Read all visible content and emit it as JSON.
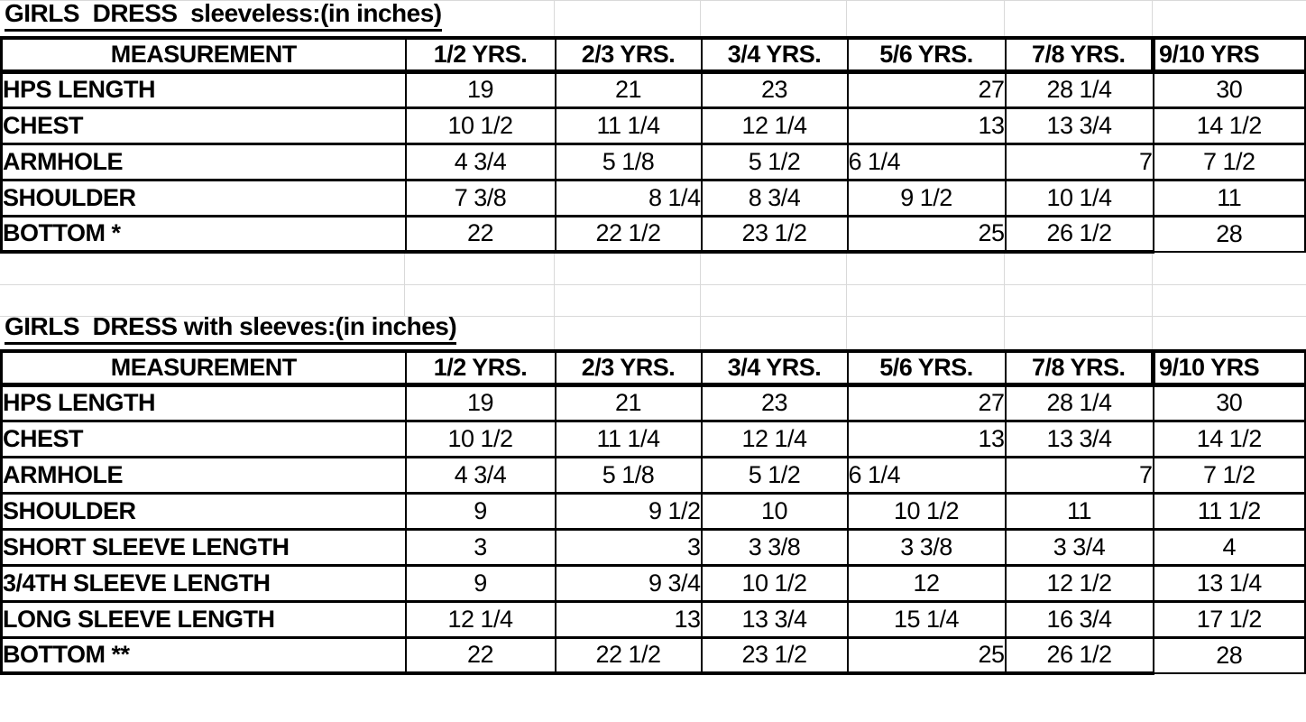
{
  "sheet": {
    "background": "#ffffff",
    "gridline_color": "#d9d9d9",
    "border_color": "#000000",
    "text_color": "#000000"
  },
  "tables": [
    {
      "title": "GIRLS  DRESS  sleeveless:(in inches)",
      "columns": [
        "MEASUREMENT",
        "1/2 YRS.",
        "2/3 YRS.",
        "3/4 YRS.",
        "5/6 YRS.",
        "7/8 YRS.",
        "9/10 YRS"
      ],
      "rows": [
        {
          "label": "HPS LENGTH",
          "values": [
            "19",
            "21",
            "23",
            "27",
            "28 1/4",
            "30"
          ],
          "align": [
            "c",
            "c",
            "c",
            "r",
            "c",
            "c"
          ]
        },
        {
          "label": "CHEST",
          "values": [
            "10 1/2",
            "11 1/4",
            "12 1/4",
            "13",
            "13 3/4",
            "14 1/2"
          ],
          "align": [
            "c",
            "c",
            "c",
            "r",
            "c",
            "c"
          ]
        },
        {
          "label": "ARMHOLE",
          "values": [
            "4 3/4",
            "5 1/8",
            "5 1/2",
            "6 1/4",
            "7",
            "7 1/2"
          ],
          "align": [
            "c",
            "c",
            "c",
            "l",
            "r",
            "c"
          ]
        },
        {
          "label": "SHOULDER",
          "values": [
            "7 3/8",
            "8 1/4",
            "8 3/4",
            "9 1/2",
            "10 1/4",
            "11"
          ],
          "align": [
            "c",
            "r",
            "c",
            "c",
            "c",
            "c"
          ]
        },
        {
          "label": "BOTTOM *",
          "values": [
            "22",
            "22 1/2",
            "23 1/2",
            "25",
            "26 1/2",
            "28"
          ],
          "align": [
            "c",
            "c",
            "c",
            "r",
            "c",
            "c"
          ]
        }
      ]
    },
    {
      "title": "GIRLS  DRESS with sleeves:(in inches)",
      "columns": [
        "MEASUREMENT",
        "1/2 YRS.",
        "2/3 YRS.",
        "3/4 YRS.",
        "5/6 YRS.",
        "7/8 YRS.",
        "9/10 YRS"
      ],
      "rows": [
        {
          "label": "HPS LENGTH",
          "values": [
            "19",
            "21",
            "23",
            "27",
            "28 1/4",
            "30"
          ],
          "align": [
            "c",
            "c",
            "c",
            "r",
            "c",
            "c"
          ]
        },
        {
          "label": "CHEST",
          "values": [
            "10 1/2",
            "11 1/4",
            "12 1/4",
            "13",
            "13 3/4",
            "14 1/2"
          ],
          "align": [
            "c",
            "c",
            "c",
            "r",
            "c",
            "c"
          ]
        },
        {
          "label": "ARMHOLE",
          "values": [
            "4 3/4",
            "5 1/8",
            "5 1/2",
            "6 1/4",
            "7",
            "7 1/2"
          ],
          "align": [
            "c",
            "c",
            "c",
            "l",
            "r",
            "c"
          ]
        },
        {
          "label": "SHOULDER",
          "values": [
            "9",
            "9 1/2",
            "10",
            "10 1/2",
            "11",
            "11 1/2"
          ],
          "align": [
            "c",
            "r",
            "c",
            "c",
            "c",
            "c"
          ]
        },
        {
          "label": "SHORT SLEEVE LENGTH",
          "values": [
            "3",
            "3",
            "3 3/8",
            "3 3/8",
            "3 3/4",
            "4"
          ],
          "align": [
            "c",
            "r",
            "c",
            "c",
            "c",
            "c"
          ]
        },
        {
          "label": "3/4TH SLEEVE LENGTH",
          "values": [
            "9",
            "9 3/4",
            "10 1/2",
            "12",
            "12 1/2",
            "13 1/4"
          ],
          "align": [
            "c",
            "r",
            "c",
            "c",
            "c",
            "c"
          ]
        },
        {
          "label": "LONG SLEEVE LENGTH",
          "values": [
            "12 1/4",
            "13",
            "13 3/4",
            "15 1/4",
            "16 3/4",
            "17 1/2"
          ],
          "align": [
            "c",
            "r",
            "c",
            "c",
            "c",
            "c"
          ]
        },
        {
          "label": "BOTTOM **",
          "values": [
            "22",
            "22 1/2",
            "23 1/2",
            "25",
            "26 1/2",
            "28"
          ],
          "align": [
            "c",
            "c",
            "c",
            "r",
            "c",
            "c"
          ]
        }
      ]
    }
  ]
}
